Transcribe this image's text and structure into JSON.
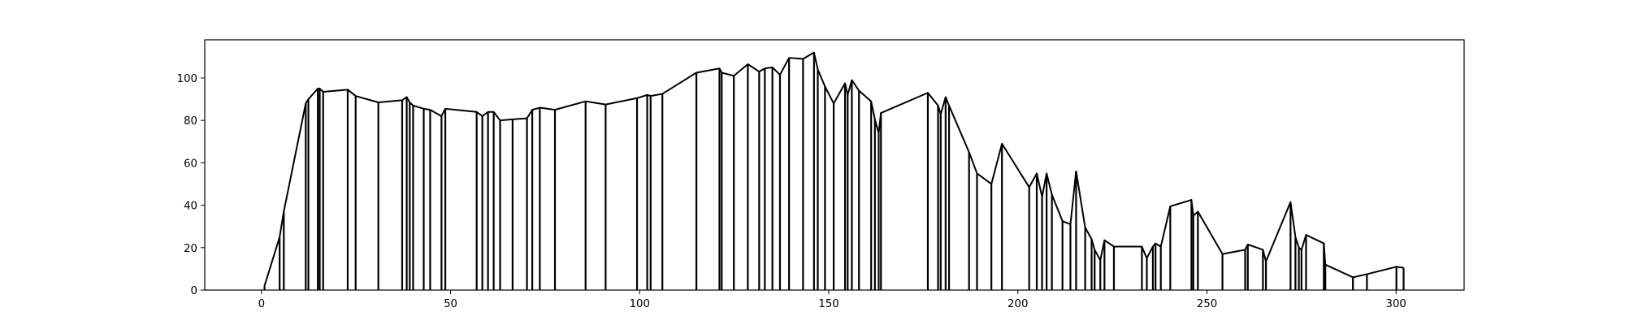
{
  "chart_data": {
    "type": "line",
    "title": "",
    "xlabel": "",
    "ylabel": "",
    "xlim": [
      -15,
      318
    ],
    "ylim": [
      0,
      118
    ],
    "grid": false,
    "legend": "none",
    "line_color": "#000000",
    "x_ticks": [
      0,
      50,
      100,
      150,
      200,
      250,
      300
    ],
    "x_tick_labels": [
      "0",
      "50",
      "100",
      "150",
      "200",
      "250",
      "300"
    ],
    "y_ticks": [
      0,
      20,
      40,
      60,
      80,
      100
    ],
    "y_tick_labels": [
      "0",
      "20",
      "40",
      "60",
      "80",
      "100"
    ],
    "series": [
      {
        "x": [
          0.8,
          4.8,
          5.9,
          11.7,
          12.4,
          14.9,
          15.4,
          16.3,
          22.8,
          24.9,
          30.9,
          37.2,
          38.4,
          39.2,
          40.1,
          42.9,
          44.6,
          47.6,
          48.6,
          56.9,
          58.4,
          59.9,
          61.4,
          63.1,
          66.4,
          70.2,
          71.6,
          73.6,
          77.6,
          85.7,
          91.0,
          99.3,
          102.0,
          102.9,
          106.0,
          115.0,
          121.1,
          121.7,
          124.9,
          128.6,
          131.6,
          133.1,
          135.1,
          137.1,
          139.5,
          143.2,
          146.1,
          147.1,
          149.0,
          151.3,
          154.3,
          155.0,
          156.1,
          158.0,
          161.2,
          162.2,
          163.2,
          163.8,
          176.2,
          178.9,
          179.6,
          180.9,
          181.8,
          187.1,
          189.2,
          193.0,
          195.8,
          203.0,
          205.0,
          206.4,
          207.6,
          209.0,
          211.8,
          213.9,
          215.4,
          217.8,
          219.5,
          220.3,
          221.8,
          222.9,
          225.4,
          232.8,
          234.1,
          235.7,
          236.4,
          237.8,
          240.3,
          245.9,
          246.4,
          247.6,
          254.1,
          260.1,
          260.8,
          264.8,
          265.6,
          272.1,
          273.4,
          274.3,
          275.0,
          276.2,
          280.9,
          281.3,
          288.6,
          292.3,
          300.1,
          302.0
        ],
        "values": [
          2,
          25,
          37,
          88,
          90,
          95,
          95,
          93.5,
          94.5,
          91.5,
          88.5,
          89.5,
          91,
          88.5,
          87,
          85.5,
          85,
          82,
          85.5,
          84,
          82,
          84,
          84,
          80,
          80.5,
          81,
          85,
          86,
          85,
          89,
          87.5,
          90.5,
          92,
          91.5,
          92.5,
          102.5,
          104.5,
          102.5,
          101,
          106.5,
          103,
          104.5,
          105,
          101.5,
          109.5,
          109,
          112,
          104,
          96,
          88,
          97.5,
          92,
          99,
          94,
          89,
          80.5,
          74,
          83.5,
          93,
          87,
          83,
          91,
          87,
          65,
          55,
          50,
          69,
          48.5,
          55,
          44,
          55,
          45,
          32.5,
          31,
          56,
          29.5,
          24,
          19,
          14,
          23.5,
          20.5,
          20.5,
          15,
          20.5,
          22,
          20.5,
          39.5,
          42.5,
          35,
          37,
          17,
          19,
          21.5,
          19,
          13.5,
          41.5,
          25,
          20,
          19,
          26,
          22,
          12,
          6,
          7.5,
          11,
          10.5
        ]
      }
    ]
  }
}
